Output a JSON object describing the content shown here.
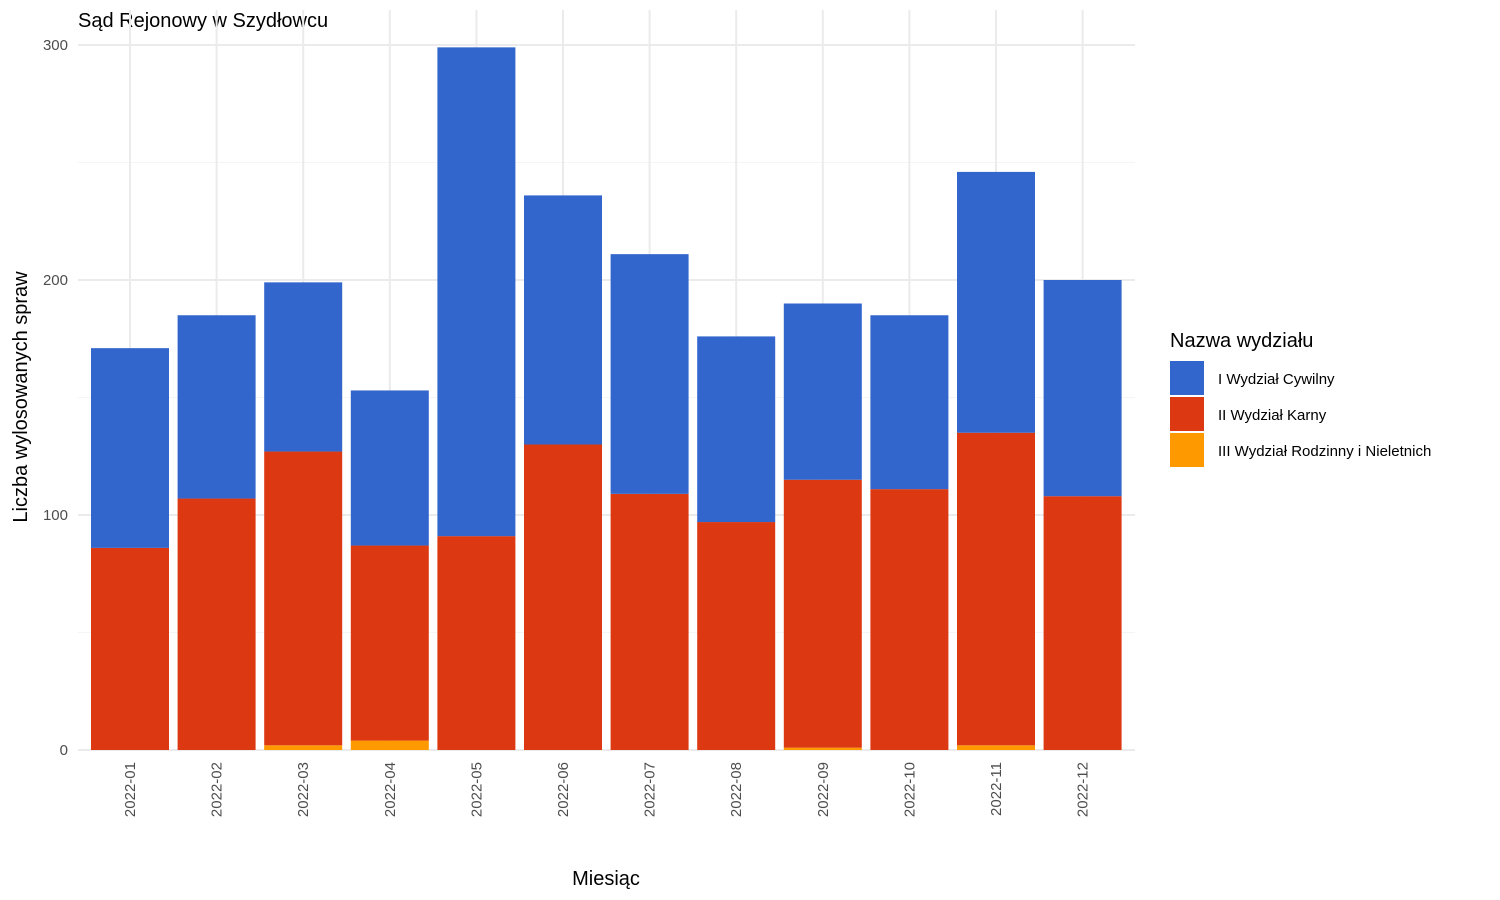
{
  "chart_data": {
    "type": "bar",
    "stacked": true,
    "title": "Sąd Rejonowy w Szydłowcu",
    "xlabel": "Miesiąc",
    "ylabel": "Liczba wylosowanych spraw",
    "ylim": [
      0,
      300
    ],
    "yticks": [
      "0",
      "100",
      "200",
      "300"
    ],
    "grid": true,
    "legend": {
      "title": "Nazwa wydziału",
      "position": "right"
    },
    "categories": [
      "2022-01",
      "2022-02",
      "2022-03",
      "2022-04",
      "2022-05",
      "2022-06",
      "2022-07",
      "2022-08",
      "2022-09",
      "2022-10",
      "2022-11",
      "2022-12"
    ],
    "series": [
      {
        "name": "III Wydział Rodzinny i Nieletnich",
        "color": "#FF9900",
        "values": [
          0,
          0,
          2,
          4,
          0,
          0,
          0,
          0,
          1,
          0,
          2,
          0
        ]
      },
      {
        "name": "II Wydział Karny",
        "color": "#DC3912",
        "values": [
          86,
          107,
          125,
          83,
          91,
          130,
          109,
          97,
          114,
          111,
          133,
          108
        ]
      },
      {
        "name": "I Wydział Cywilny",
        "color": "#3366CC",
        "values": [
          85,
          78,
          72,
          66,
          208,
          106,
          102,
          79,
          75,
          74,
          111,
          92
        ]
      }
    ]
  }
}
